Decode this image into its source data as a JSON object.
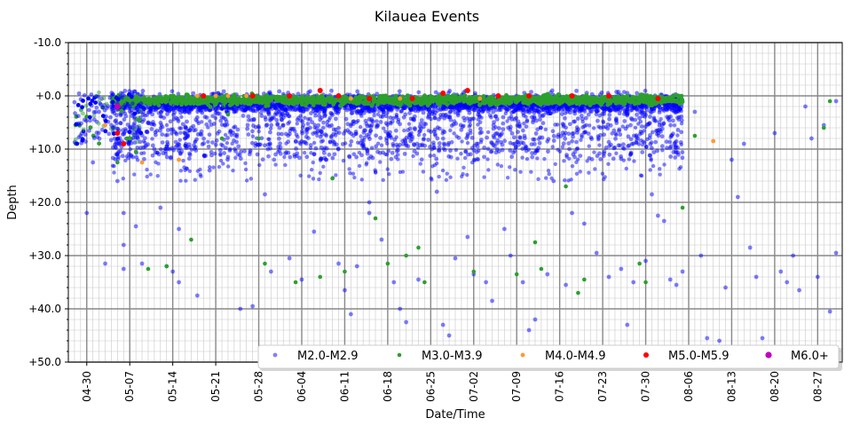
{
  "chart_data": {
    "type": "scatter",
    "title": "Kilauea Events",
    "xlabel": "Date/Time",
    "ylabel": "Depth",
    "x_range": [
      "2018-04-27",
      "2018-08-31"
    ],
    "y_range": [
      -10,
      50
    ],
    "y_inverted": true,
    "y_ticks": [
      "-10.0",
      "+0.0",
      "+10.0",
      "+20.0",
      "+30.0",
      "+40.0",
      "+50.0"
    ],
    "x_tick_dates": [
      "2018-04-30",
      "2018-05-07",
      "2018-05-14",
      "2018-05-21",
      "2018-05-28",
      "2018-06-04",
      "2018-06-11",
      "2018-06-18",
      "2018-06-25",
      "2018-07-02",
      "2018-07-09",
      "2018-07-16",
      "2018-07-23",
      "2018-07-30",
      "2018-08-06",
      "2018-08-13",
      "2018-08-20",
      "2018-08-27"
    ],
    "x_tick_labels": [
      "04-30",
      "05-07",
      "05-14",
      "05-21",
      "05-28",
      "06-04",
      "06-11",
      "06-18",
      "06-25",
      "07-02",
      "07-09",
      "07-16",
      "07-23",
      "07-30",
      "08-06",
      "08-13",
      "08-20",
      "08-27"
    ],
    "grid": true,
    "legend_position": "bottom-right",
    "series": [
      {
        "name": "M2.0-M2.9",
        "color": "#0000ff",
        "points": [
          [
            "2018-04-28",
            1.2
          ],
          [
            "2018-04-29",
            7.5
          ],
          [
            "2018-04-30",
            22.0
          ],
          [
            "2018-05-01",
            12.5
          ],
          [
            "2018-05-02",
            3.0
          ],
          [
            "2018-05-03",
            31.5
          ],
          [
            "2018-05-04",
            5.5
          ],
          [
            "2018-05-05",
            11.0
          ],
          [
            "2018-05-05",
            16.0
          ],
          [
            "2018-05-06",
            32.5
          ],
          [
            "2018-05-06",
            28.0
          ],
          [
            "2018-05-06",
            22.0
          ],
          [
            "2018-05-07",
            2.0
          ],
          [
            "2018-05-07",
            8.5
          ],
          [
            "2018-05-08",
            24.5
          ],
          [
            "2018-05-09",
            31.5
          ],
          [
            "2018-05-10",
            5.0
          ],
          [
            "2018-05-11",
            10.0
          ],
          [
            "2018-05-12",
            21.0
          ],
          [
            "2018-05-13",
            32.0
          ],
          [
            "2018-05-14",
            33.0
          ],
          [
            "2018-05-15",
            35.0
          ],
          [
            "2018-05-15",
            25.0
          ],
          [
            "2018-05-16",
            3.0
          ],
          [
            "2018-05-17",
            6.0
          ],
          [
            "2018-05-18",
            37.5
          ],
          [
            "2018-05-20",
            14.0
          ],
          [
            "2018-05-22",
            4.0
          ],
          [
            "2018-05-23",
            11.5
          ],
          [
            "2018-05-25",
            40.0
          ],
          [
            "2018-05-27",
            39.5
          ],
          [
            "2018-05-29",
            18.5
          ],
          [
            "2018-05-30",
            33.0
          ],
          [
            "2018-06-01",
            5.5
          ],
          [
            "2018-06-02",
            30.5
          ],
          [
            "2018-06-04",
            34.5
          ],
          [
            "2018-06-06",
            25.5
          ],
          [
            "2018-06-08",
            12.0
          ],
          [
            "2018-06-10",
            31.5
          ],
          [
            "2018-06-11",
            36.5
          ],
          [
            "2018-06-12",
            41.0
          ],
          [
            "2018-06-13",
            32.0
          ],
          [
            "2018-06-15",
            20.0
          ],
          [
            "2018-06-15",
            22.0
          ],
          [
            "2018-06-17",
            27.0
          ],
          [
            "2018-06-19",
            35.0
          ],
          [
            "2018-06-20",
            40.0
          ],
          [
            "2018-06-21",
            42.5
          ],
          [
            "2018-06-23",
            34.5
          ],
          [
            "2018-06-26",
            18.0
          ],
          [
            "2018-06-27",
            43.0
          ],
          [
            "2018-06-28",
            45.0
          ],
          [
            "2018-06-29",
            30.5
          ],
          [
            "2018-07-01",
            26.5
          ],
          [
            "2018-07-02",
            33.5
          ],
          [
            "2018-07-04",
            35.0
          ],
          [
            "2018-07-05",
            38.5
          ],
          [
            "2018-07-07",
            25.0
          ],
          [
            "2018-07-08",
            30.0
          ],
          [
            "2018-07-10",
            35.0
          ],
          [
            "2018-07-11",
            44.0
          ],
          [
            "2018-07-12",
            42.0
          ],
          [
            "2018-07-14",
            33.5
          ],
          [
            "2018-07-15",
            16.0
          ],
          [
            "2018-07-17",
            35.5
          ],
          [
            "2018-07-18",
            22.0
          ],
          [
            "2018-07-20",
            24.0
          ],
          [
            "2018-07-22",
            29.5
          ],
          [
            "2018-07-24",
            34.0
          ],
          [
            "2018-07-26",
            32.5
          ],
          [
            "2018-07-27",
            43.0
          ],
          [
            "2018-07-28",
            35.0
          ],
          [
            "2018-07-30",
            31.0
          ],
          [
            "2018-07-31",
            18.5
          ],
          [
            "2018-08-01",
            22.5
          ],
          [
            "2018-08-02",
            23.5
          ],
          [
            "2018-08-03",
            34.5
          ],
          [
            "2018-08-04",
            35.5
          ],
          [
            "2018-08-05",
            33.0
          ],
          [
            "2018-08-07",
            3.0
          ],
          [
            "2018-08-08",
            30.0
          ],
          [
            "2018-08-09",
            45.5
          ],
          [
            "2018-08-11",
            46.0
          ],
          [
            "2018-08-12",
            36.0
          ],
          [
            "2018-08-13",
            12.0
          ],
          [
            "2018-08-14",
            19.0
          ],
          [
            "2018-08-15",
            9.0
          ],
          [
            "2018-08-16",
            28.5
          ],
          [
            "2018-08-17",
            34.0
          ],
          [
            "2018-08-18",
            45.5
          ],
          [
            "2018-08-20",
            7.0
          ],
          [
            "2018-08-21",
            33.0
          ],
          [
            "2018-08-22",
            35.0
          ],
          [
            "2018-08-23",
            30.0
          ],
          [
            "2018-08-24",
            36.5
          ],
          [
            "2018-08-25",
            2.0
          ],
          [
            "2018-08-26",
            8.0
          ],
          [
            "2018-08-27",
            34.0
          ],
          [
            "2018-08-28",
            5.5
          ],
          [
            "2018-08-29",
            40.5
          ],
          [
            "2018-08-30",
            29.5
          ],
          [
            "2018-08-30",
            1.0
          ]
        ]
      },
      {
        "name": "M3.0-M3.9",
        "color": "#2ca02c",
        "points": [
          [
            "2018-05-05",
            12.5
          ],
          [
            "2018-05-07",
            8.0
          ],
          [
            "2018-05-08",
            10.5
          ],
          [
            "2018-05-10",
            32.5
          ],
          [
            "2018-05-13",
            32.0
          ],
          [
            "2018-05-17",
            27.0
          ],
          [
            "2018-05-22",
            8.0
          ],
          [
            "2018-05-23",
            3.5
          ],
          [
            "2018-05-28",
            8.0
          ],
          [
            "2018-05-29",
            31.5
          ],
          [
            "2018-06-03",
            35.0
          ],
          [
            "2018-06-07",
            34.0
          ],
          [
            "2018-06-09",
            15.5
          ],
          [
            "2018-06-11",
            33.0
          ],
          [
            "2018-06-16",
            23.0
          ],
          [
            "2018-06-18",
            31.5
          ],
          [
            "2018-06-21",
            30.0
          ],
          [
            "2018-06-23",
            28.5
          ],
          [
            "2018-06-24",
            35.0
          ],
          [
            "2018-07-02",
            33.0
          ],
          [
            "2018-07-09",
            33.5
          ],
          [
            "2018-07-12",
            27.5
          ],
          [
            "2018-07-13",
            32.5
          ],
          [
            "2018-07-17",
            17.0
          ],
          [
            "2018-07-19",
            37.0
          ],
          [
            "2018-07-20",
            34.5
          ],
          [
            "2018-07-29",
            31.5
          ],
          [
            "2018-07-30",
            35.0
          ],
          [
            "2018-08-05",
            21.0
          ],
          [
            "2018-08-07",
            7.5
          ],
          [
            "2018-08-28",
            6.0
          ],
          [
            "2018-08-29",
            1.0
          ]
        ]
      },
      {
        "name": "M4.0-M4.9",
        "color": "#ff9933",
        "points": [
          [
            "2018-05-03",
            5.5
          ],
          [
            "2018-05-09",
            12.5
          ],
          [
            "2018-05-15",
            12.0
          ],
          [
            "2018-05-18",
            0.0
          ],
          [
            "2018-05-21",
            0.0
          ],
          [
            "2018-05-23",
            0.0
          ],
          [
            "2018-05-26",
            0.0
          ],
          [
            "2018-06-12",
            0.5
          ],
          [
            "2018-06-20",
            0.5
          ],
          [
            "2018-07-03",
            0.5
          ],
          [
            "2018-08-10",
            8.5
          ]
        ]
      },
      {
        "name": "M5.0-M5.9",
        "color": "#ff0000",
        "points": [
          [
            "2018-05-05",
            7.0
          ],
          [
            "2018-05-06",
            9.0
          ],
          [
            "2018-05-19",
            0.0
          ],
          [
            "2018-05-27",
            0.0
          ],
          [
            "2018-06-02",
            0.0
          ],
          [
            "2018-06-07",
            -1.0
          ],
          [
            "2018-06-10",
            0.0
          ],
          [
            "2018-06-15",
            0.5
          ],
          [
            "2018-06-22",
            0.5
          ],
          [
            "2018-06-27",
            -0.5
          ],
          [
            "2018-07-01",
            -1.0
          ],
          [
            "2018-07-06",
            0.0
          ],
          [
            "2018-07-11",
            0.0
          ],
          [
            "2018-07-18",
            0.0
          ],
          [
            "2018-07-24",
            0.0
          ],
          [
            "2018-08-01",
            0.5
          ]
        ]
      },
      {
        "name": "M6.0+",
        "color": "#c000c0",
        "points": [
          [
            "2018-05-05",
            2.0
          ]
        ]
      }
    ]
  }
}
